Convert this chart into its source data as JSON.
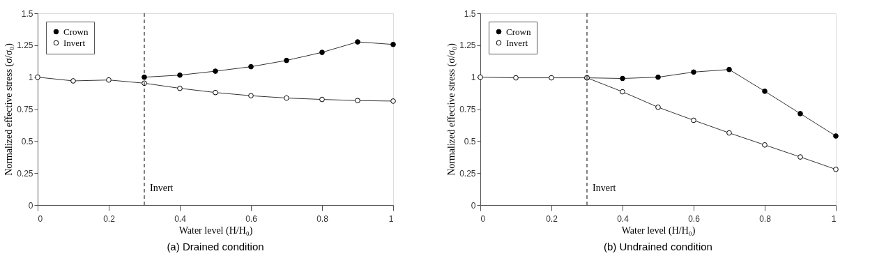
{
  "chart_data": [
    {
      "type": "line",
      "title": "(a)  Drained condition",
      "xlabel": "Water level (H/H₀)",
      "ylabel": "Normalized effective stress (σ/σ₀)",
      "x": [
        0,
        0.1,
        0.2,
        0.3,
        0.4,
        0.5,
        0.6,
        0.7,
        0.8,
        0.9,
        1.0
      ],
      "series": [
        {
          "name": "Crown",
          "color": "#000000",
          "values": [
            null,
            null,
            null,
            1.0,
            1.016,
            1.047,
            1.082,
            1.131,
            1.194,
            1.276,
            1.256
          ]
        },
        {
          "name": "Invert",
          "color": "#ffffff",
          "values": [
            1.0,
            0.971,
            0.978,
            0.953,
            0.913,
            0.88,
            0.855,
            0.837,
            0.826,
            0.817,
            0.813
          ]
        }
      ],
      "xlim": [
        0,
        1
      ],
      "ylim": [
        0,
        1.5
      ],
      "xticks": [
        0,
        0.2,
        0.4,
        0.6,
        0.8,
        1
      ],
      "yticks": [
        0,
        0.25,
        0.5,
        0.75,
        1,
        1.25,
        1.5
      ],
      "ref_lines": [
        {
          "axis": "x",
          "value": 0.3,
          "label": "Invert",
          "line_style": "dashed",
          "color": "#000000"
        }
      ],
      "legend": "top left",
      "marker": "circle",
      "line_style": "solid",
      "grid": false
    },
    {
      "type": "line",
      "title": "(b)  Undrained condition",
      "xlabel": "Water level (H/H₀)",
      "ylabel": "Normalized effective stress (σ/σ₀)",
      "x": [
        0,
        0.1,
        0.2,
        0.3,
        0.4,
        0.5,
        0.6,
        0.7,
        0.8,
        0.9,
        1.0
      ],
      "series": [
        {
          "name": "Crown",
          "color": "#000000",
          "values": [
            null,
            null,
            null,
            0.995,
            0.99,
            1.0,
            1.04,
            1.06,
            0.89,
            0.715,
            0.54
          ]
        },
        {
          "name": "Invert",
          "color": "#ffffff",
          "values": [
            1.0,
            0.995,
            0.995,
            0.995,
            0.886,
            0.765,
            0.663,
            0.564,
            0.47,
            0.376,
            0.279
          ]
        }
      ],
      "xlim": [
        0,
        1
      ],
      "ylim": [
        0,
        1.5
      ],
      "xticks": [
        0,
        0.2,
        0.4,
        0.6,
        0.8,
        1
      ],
      "yticks": [
        0,
        0.25,
        0.5,
        0.75,
        1,
        1.25,
        1.5
      ],
      "ref_lines": [
        {
          "axis": "x",
          "value": 0.3,
          "label": "Invert",
          "line_style": "dashed",
          "color": "#000000"
        }
      ],
      "legend": "top left",
      "marker": "circle",
      "line_style": "solid",
      "grid": false
    }
  ]
}
